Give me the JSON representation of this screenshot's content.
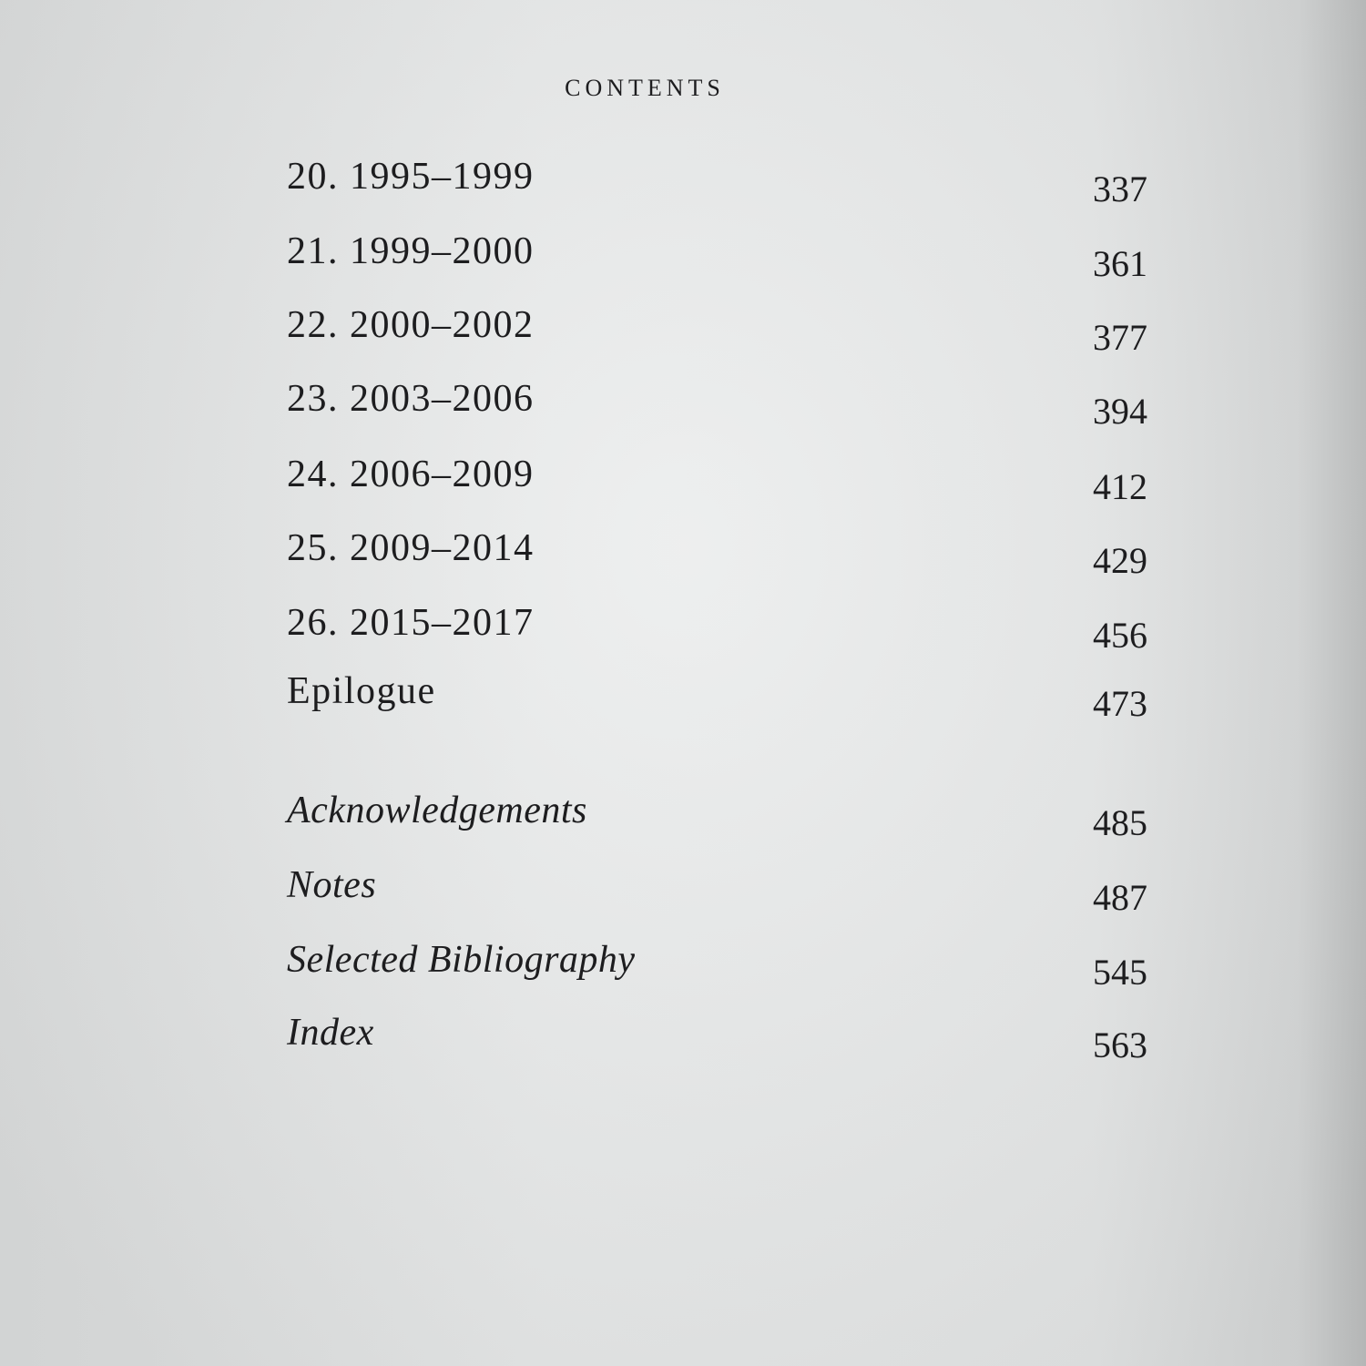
{
  "header": {
    "title": "CONTENTS"
  },
  "entries": [
    {
      "label": "20.  1995–1999",
      "page": "337",
      "style": "roman"
    },
    {
      "label": "21.  1999–2000",
      "page": "361",
      "style": "roman"
    },
    {
      "label": "22.  2000–2002",
      "page": "377",
      "style": "roman"
    },
    {
      "label": "23.  2003–2006",
      "page": "394",
      "style": "roman"
    },
    {
      "label": "24.  2006–2009",
      "page": "412",
      "style": "roman"
    },
    {
      "label": "25.  2009–2014",
      "page": "429",
      "style": "roman"
    },
    {
      "label": "26.  2015–2017",
      "page": "456",
      "style": "roman"
    },
    {
      "label": "Epilogue",
      "page": "473",
      "style": "roman"
    },
    {
      "label": "Acknowledgements",
      "page": "485",
      "style": "italic"
    },
    {
      "label": "Notes",
      "page": "487",
      "style": "italic"
    },
    {
      "label": "Selected Bibliography",
      "page": "545",
      "style": "italic"
    },
    {
      "label": "Index",
      "page": "563",
      "style": "italic"
    }
  ]
}
